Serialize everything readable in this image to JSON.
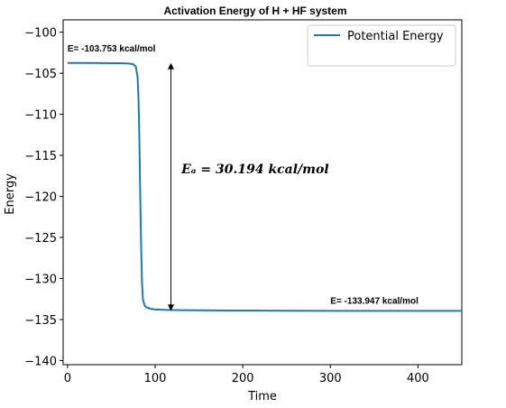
{
  "chart_data": {
    "type": "line",
    "title": "Activation Energy of H + HF system",
    "xlabel": "Time",
    "ylabel": "Energy",
    "xlim": [
      -5,
      450
    ],
    "ylim": [
      -140.5,
      -98.5
    ],
    "xticks": [
      0,
      100,
      200,
      300,
      400
    ],
    "yticks": [
      -100,
      -105,
      -110,
      -115,
      -120,
      -125,
      -130,
      -135,
      -140
    ],
    "legend": {
      "placement": "top-right",
      "entries": [
        "Potential Energy"
      ]
    },
    "grid": false,
    "series": [
      {
        "name": "Potential Energy",
        "color": "#1f77b4",
        "x": [
          0,
          20,
          40,
          60,
          70,
          75,
          78,
          80,
          81,
          82,
          83,
          84,
          85,
          86,
          88,
          90,
          95,
          100,
          110,
          130,
          150,
          200,
          250,
          300,
          350,
          400,
          450
        ],
        "y": [
          -103.75,
          -103.753,
          -103.76,
          -103.78,
          -103.82,
          -103.9,
          -104.2,
          -105.5,
          -108,
          -113,
          -120,
          -126,
          -130.5,
          -132.5,
          -133.3,
          -133.5,
          -133.7,
          -133.78,
          -133.82,
          -133.86,
          -133.88,
          -133.91,
          -133.93,
          -133.94,
          -133.945,
          -133.947,
          -133.947
        ]
      }
    ],
    "annotations": {
      "start_label": "E= -103.753 kcal/mol",
      "end_label": "E= -133.947 kcal/mol",
      "ea_label": "Eₐ = 30.194 kcal/mol",
      "arrow": {
        "x": 118,
        "y_top": -103.753,
        "y_bottom": -133.947
      }
    }
  }
}
